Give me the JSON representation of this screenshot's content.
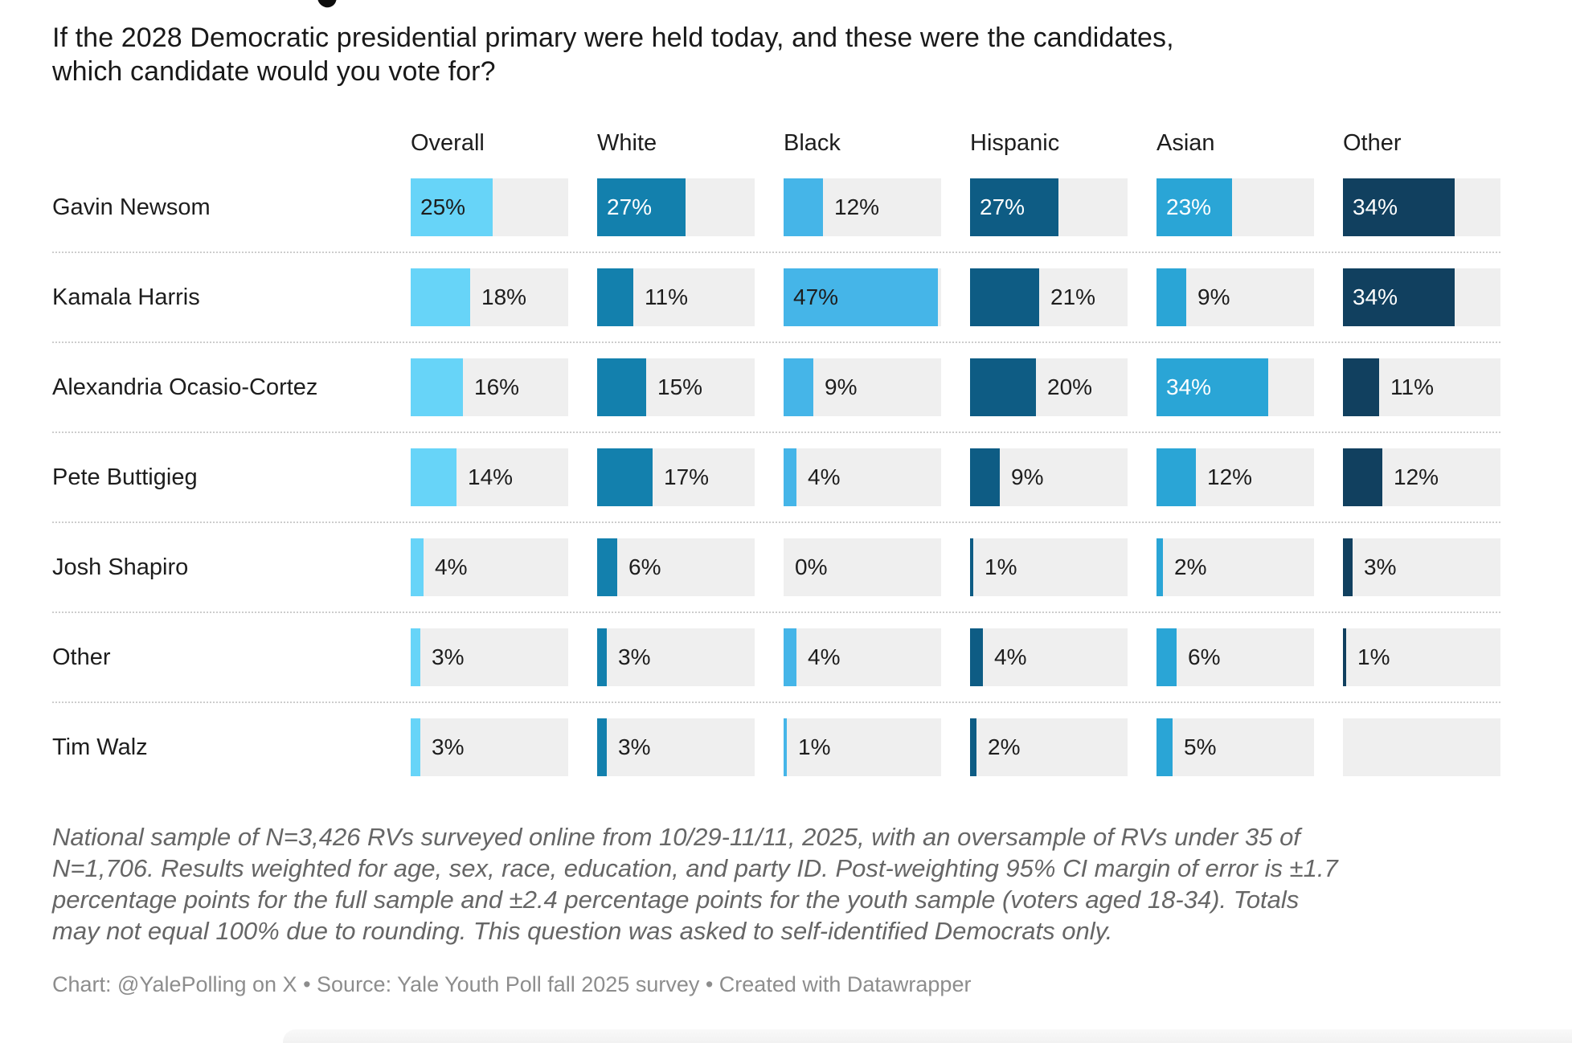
{
  "question": {
    "line1": "If the 2028 Democratic presidential primary were held today, and these were the candidates,",
    "line2": "which candidate would you vote for?"
  },
  "chart_data": {
    "type": "bar",
    "orientation": "horizontal",
    "unit": "%",
    "scale_max": 48,
    "track_color": "#efefef",
    "grid": "off",
    "columns": [
      {
        "label": "Overall",
        "color": "#67d4f8",
        "inside_label_color": "#1d1d1d"
      },
      {
        "label": "White",
        "color": "#1380ad",
        "inside_label_color": "#ffffff"
      },
      {
        "label": "Black",
        "color": "#45b5e8",
        "inside_label_color": "#1d1d1d"
      },
      {
        "label": "Hispanic",
        "color": "#0e5c84",
        "inside_label_color": "#ffffff"
      },
      {
        "label": "Asian",
        "color": "#2aa5d6",
        "inside_label_color": "#ffffff"
      },
      {
        "label": "Other",
        "color": "#11405f",
        "inside_label_color": "#ffffff"
      }
    ],
    "rows": [
      {
        "label": "Gavin Newsom",
        "values": [
          25,
          27,
          12,
          27,
          23,
          34
        ]
      },
      {
        "label": "Kamala Harris",
        "values": [
          18,
          11,
          47,
          21,
          9,
          34
        ]
      },
      {
        "label": "Alexandria Ocasio-Cortez",
        "values": [
          16,
          15,
          9,
          20,
          34,
          11
        ]
      },
      {
        "label": "Pete Buttigieg",
        "values": [
          14,
          17,
          4,
          9,
          12,
          12
        ]
      },
      {
        "label": "Josh Shapiro",
        "values": [
          4,
          6,
          0,
          1,
          2,
          3
        ]
      },
      {
        "label": "Other",
        "values": [
          3,
          3,
          4,
          4,
          6,
          1
        ]
      },
      {
        "label": "Tim Walz",
        "values": [
          3,
          3,
          1,
          2,
          5,
          null
        ]
      }
    ]
  },
  "footnote": {
    "lines": [
      "National sample of N=3,426 RVs surveyed online from 10/29-11/11, 2025, with an oversample of RVs under 35 of",
      "N=1,706. Results weighted for age, sex, race, education, and party ID. Post-weighting 95% CI margin of error is ±1.7",
      "percentage points for the full sample and ±2.4 percentage points for the youth sample (voters aged 18-34). Totals",
      "may not equal 100% due to rounding. This question was asked to self-identified Democrats only."
    ]
  },
  "credit": "Chart: @YalePolling on X • Source: Yale Youth Poll fall 2025 survey • Created with Datawrapper"
}
